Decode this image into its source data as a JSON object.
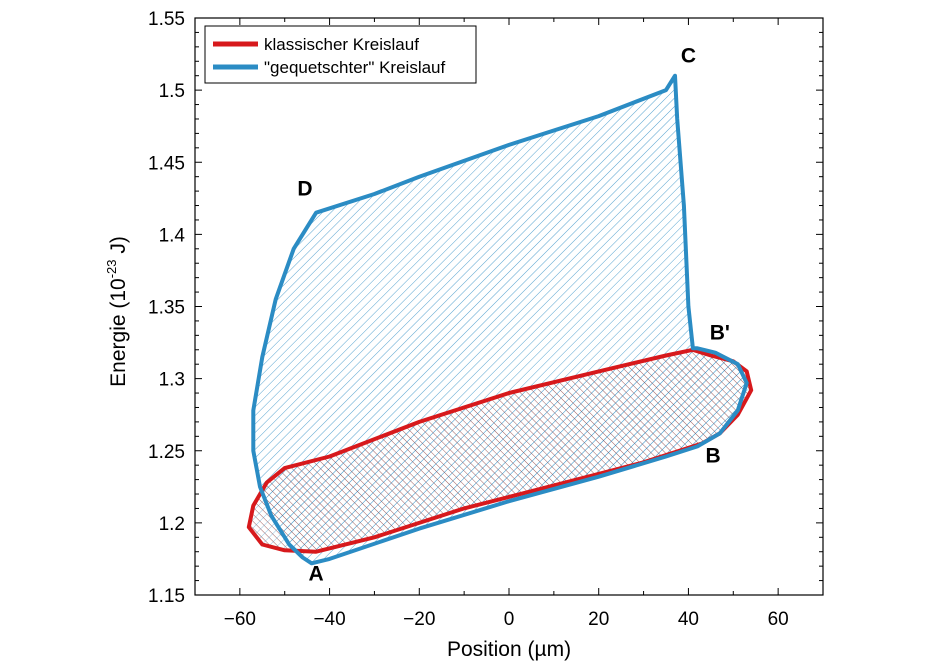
{
  "chart_data": {
    "type": "line",
    "xlabel": "Position (µm)",
    "ylabel_prefix": "Energie (10",
    "ylabel_exp": "-23",
    "ylabel_suffix": " J)",
    "xlim": [
      -70,
      70
    ],
    "ylim": [
      1.15,
      1.55
    ],
    "x_ticks": [
      -60,
      -40,
      -20,
      0,
      20,
      40,
      60
    ],
    "y_ticks": [
      1.15,
      1.2,
      1.25,
      1.3,
      1.35,
      1.4,
      1.45,
      1.5,
      1.55
    ],
    "x_tick_labels": [
      "−60",
      "−40",
      "−20",
      "0",
      "20",
      "40",
      "60"
    ],
    "y_tick_labels": [
      "1.15",
      "1.2",
      "1.25",
      "1.3",
      "1.35",
      "1.4",
      "1.45",
      "1.5",
      "1.55"
    ],
    "grid": false,
    "legend_position": "top-left",
    "series": [
      {
        "name": "klassischer Kreislauf",
        "color": "#d7191c",
        "fill": "crosshatch",
        "points": [
          [
            -43,
            1.18
          ],
          [
            -30,
            1.19
          ],
          [
            -10,
            1.21
          ],
          [
            10,
            1.226
          ],
          [
            30,
            1.242
          ],
          [
            43,
            1.255
          ],
          [
            47,
            1.262
          ],
          [
            51,
            1.275
          ],
          [
            54,
            1.292
          ],
          [
            53,
            1.305
          ],
          [
            50,
            1.312
          ],
          [
            45,
            1.316
          ],
          [
            41,
            1.32
          ],
          [
            35,
            1.316
          ],
          [
            20,
            1.305
          ],
          [
            0,
            1.29
          ],
          [
            -20,
            1.27
          ],
          [
            -40,
            1.246
          ],
          [
            -50,
            1.238
          ],
          [
            -54,
            1.228
          ],
          [
            -57,
            1.212
          ],
          [
            -58,
            1.197
          ],
          [
            -55,
            1.185
          ],
          [
            -50,
            1.181
          ],
          [
            -43,
            1.18
          ]
        ]
      },
      {
        "name": "\"gequetschter\" Kreislauf",
        "color": "#2b8cc4",
        "fill": "hatch",
        "points": [
          [
            -44,
            1.172
          ],
          [
            -40,
            1.175
          ],
          [
            -20,
            1.196
          ],
          [
            0,
            1.215
          ],
          [
            20,
            1.232
          ],
          [
            35,
            1.246
          ],
          [
            42,
            1.253
          ],
          [
            47,
            1.262
          ],
          [
            51,
            1.278
          ],
          [
            53,
            1.297
          ],
          [
            51,
            1.31
          ],
          [
            46,
            1.318
          ],
          [
            42,
            1.321
          ],
          [
            41,
            1.321
          ],
          [
            40,
            1.35
          ],
          [
            39,
            1.42
          ],
          [
            37.5,
            1.48
          ],
          [
            37,
            1.51
          ],
          [
            35,
            1.5
          ],
          [
            20,
            1.482
          ],
          [
            0,
            1.462
          ],
          [
            -20,
            1.44
          ],
          [
            -30,
            1.428
          ],
          [
            -43,
            1.415
          ],
          [
            -48,
            1.39
          ],
          [
            -52,
            1.355
          ],
          [
            -55,
            1.315
          ],
          [
            -57,
            1.278
          ],
          [
            -57,
            1.25
          ],
          [
            -55.5,
            1.225
          ],
          [
            -53,
            1.205
          ],
          [
            -49,
            1.185
          ],
          [
            -46,
            1.176
          ],
          [
            -44,
            1.172
          ]
        ]
      }
    ],
    "annotations": [
      {
        "text": "A",
        "x": -43,
        "y": 1.16
      },
      {
        "text": "B",
        "x": 45.5,
        "y": 1.242
      },
      {
        "text": "B'",
        "x": 47,
        "y": 1.327
      },
      {
        "text": "C",
        "x": 40,
        "y": 1.519
      },
      {
        "text": "D",
        "x": -45.5,
        "y": 1.427
      }
    ]
  }
}
